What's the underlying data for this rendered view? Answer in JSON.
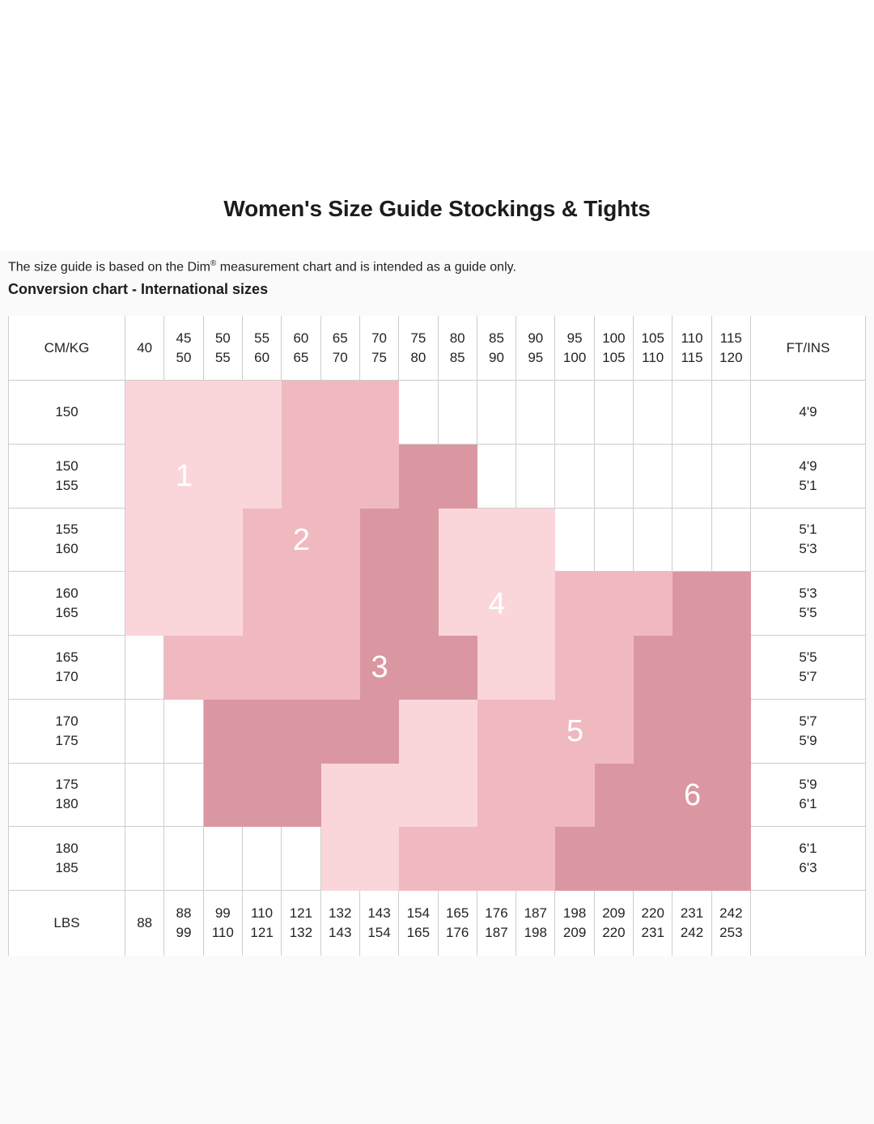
{
  "page": {
    "title": "Women's Size Guide Stockings & Tights",
    "note_prefix": "The size guide is based on the Dim",
    "note_sup": "®",
    "note_suffix": " measurement chart and is intended as a guide only.",
    "section_heading": "Conversion chart - International sizes"
  },
  "chart_data": {
    "type": "table",
    "title": "Conversion chart - International sizes",
    "corner_label": "CM/KG",
    "ftins_label": "FT/INS",
    "lbs_label": "LBS",
    "kg_columns": [
      [
        "40"
      ],
      [
        "45",
        "50"
      ],
      [
        "50",
        "55"
      ],
      [
        "55",
        "60"
      ],
      [
        "60",
        "65"
      ],
      [
        "65",
        "70"
      ],
      [
        "70",
        "75"
      ],
      [
        "75",
        "80"
      ],
      [
        "80",
        "85"
      ],
      [
        "85",
        "90"
      ],
      [
        "90",
        "95"
      ],
      [
        "95",
        "100"
      ],
      [
        "100",
        "105"
      ],
      [
        "105",
        "110"
      ],
      [
        "110",
        "115"
      ],
      [
        "115",
        "120"
      ]
    ],
    "cm_rows": [
      [
        "150"
      ],
      [
        "150",
        "155"
      ],
      [
        "155",
        "160"
      ],
      [
        "160",
        "165"
      ],
      [
        "165",
        "170"
      ],
      [
        "170",
        "175"
      ],
      [
        "175",
        "180"
      ],
      [
        "180",
        "185"
      ]
    ],
    "ftins_rows": [
      [
        "4'9"
      ],
      [
        "4'9",
        "5'1"
      ],
      [
        "5'1",
        "5'3"
      ],
      [
        "5'3",
        "5'5"
      ],
      [
        "5'5",
        "5'7"
      ],
      [
        "5'7",
        "5'9"
      ],
      [
        "5'9",
        "6'1"
      ],
      [
        "6'1",
        "6'3"
      ]
    ],
    "lbs_row": [
      [
        "88"
      ],
      [
        "88",
        "99"
      ],
      [
        "99",
        "110"
      ],
      [
        "110",
        "121"
      ],
      [
        "121",
        "132"
      ],
      [
        "132",
        "143"
      ],
      [
        "143",
        "154"
      ],
      [
        "154",
        "165"
      ],
      [
        "165",
        "176"
      ],
      [
        "176",
        "187"
      ],
      [
        "187",
        "198"
      ],
      [
        "198",
        "209"
      ],
      [
        "209",
        "220"
      ],
      [
        "220",
        "231"
      ],
      [
        "231",
        "242"
      ],
      [
        "242",
        "253"
      ]
    ],
    "color_map": [
      "LLLLMMMWWWWWWWWW",
      "LLLLMMMDDWWWWWWW",
      "LLLMMMDDLLLWWWWW",
      "LLLMMMDDLLLMMMDD",
      "WMMMMMDDDLLMMDDD",
      "WWDDDDDLLMMMMDDD",
      "WWDDDLLLLMMMDDDD",
      "WWWWWLLMMMMDDDDD"
    ],
    "palette": {
      "L": "#FAD6DB",
      "M": "#F0B9C0",
      "D": "#DA97A1",
      "W": "#FFFFFF"
    },
    "size_markers": [
      {
        "label": "1",
        "row": 2,
        "col": 2
      },
      {
        "label": "2",
        "row": 3,
        "col": 5
      },
      {
        "label": "3",
        "row": 5,
        "col": 7
      },
      {
        "label": "4",
        "row": 4,
        "col": 10
      },
      {
        "label": "5",
        "row": 6,
        "col": 12
      },
      {
        "label": "6",
        "row": 7,
        "col": 15
      }
    ]
  }
}
